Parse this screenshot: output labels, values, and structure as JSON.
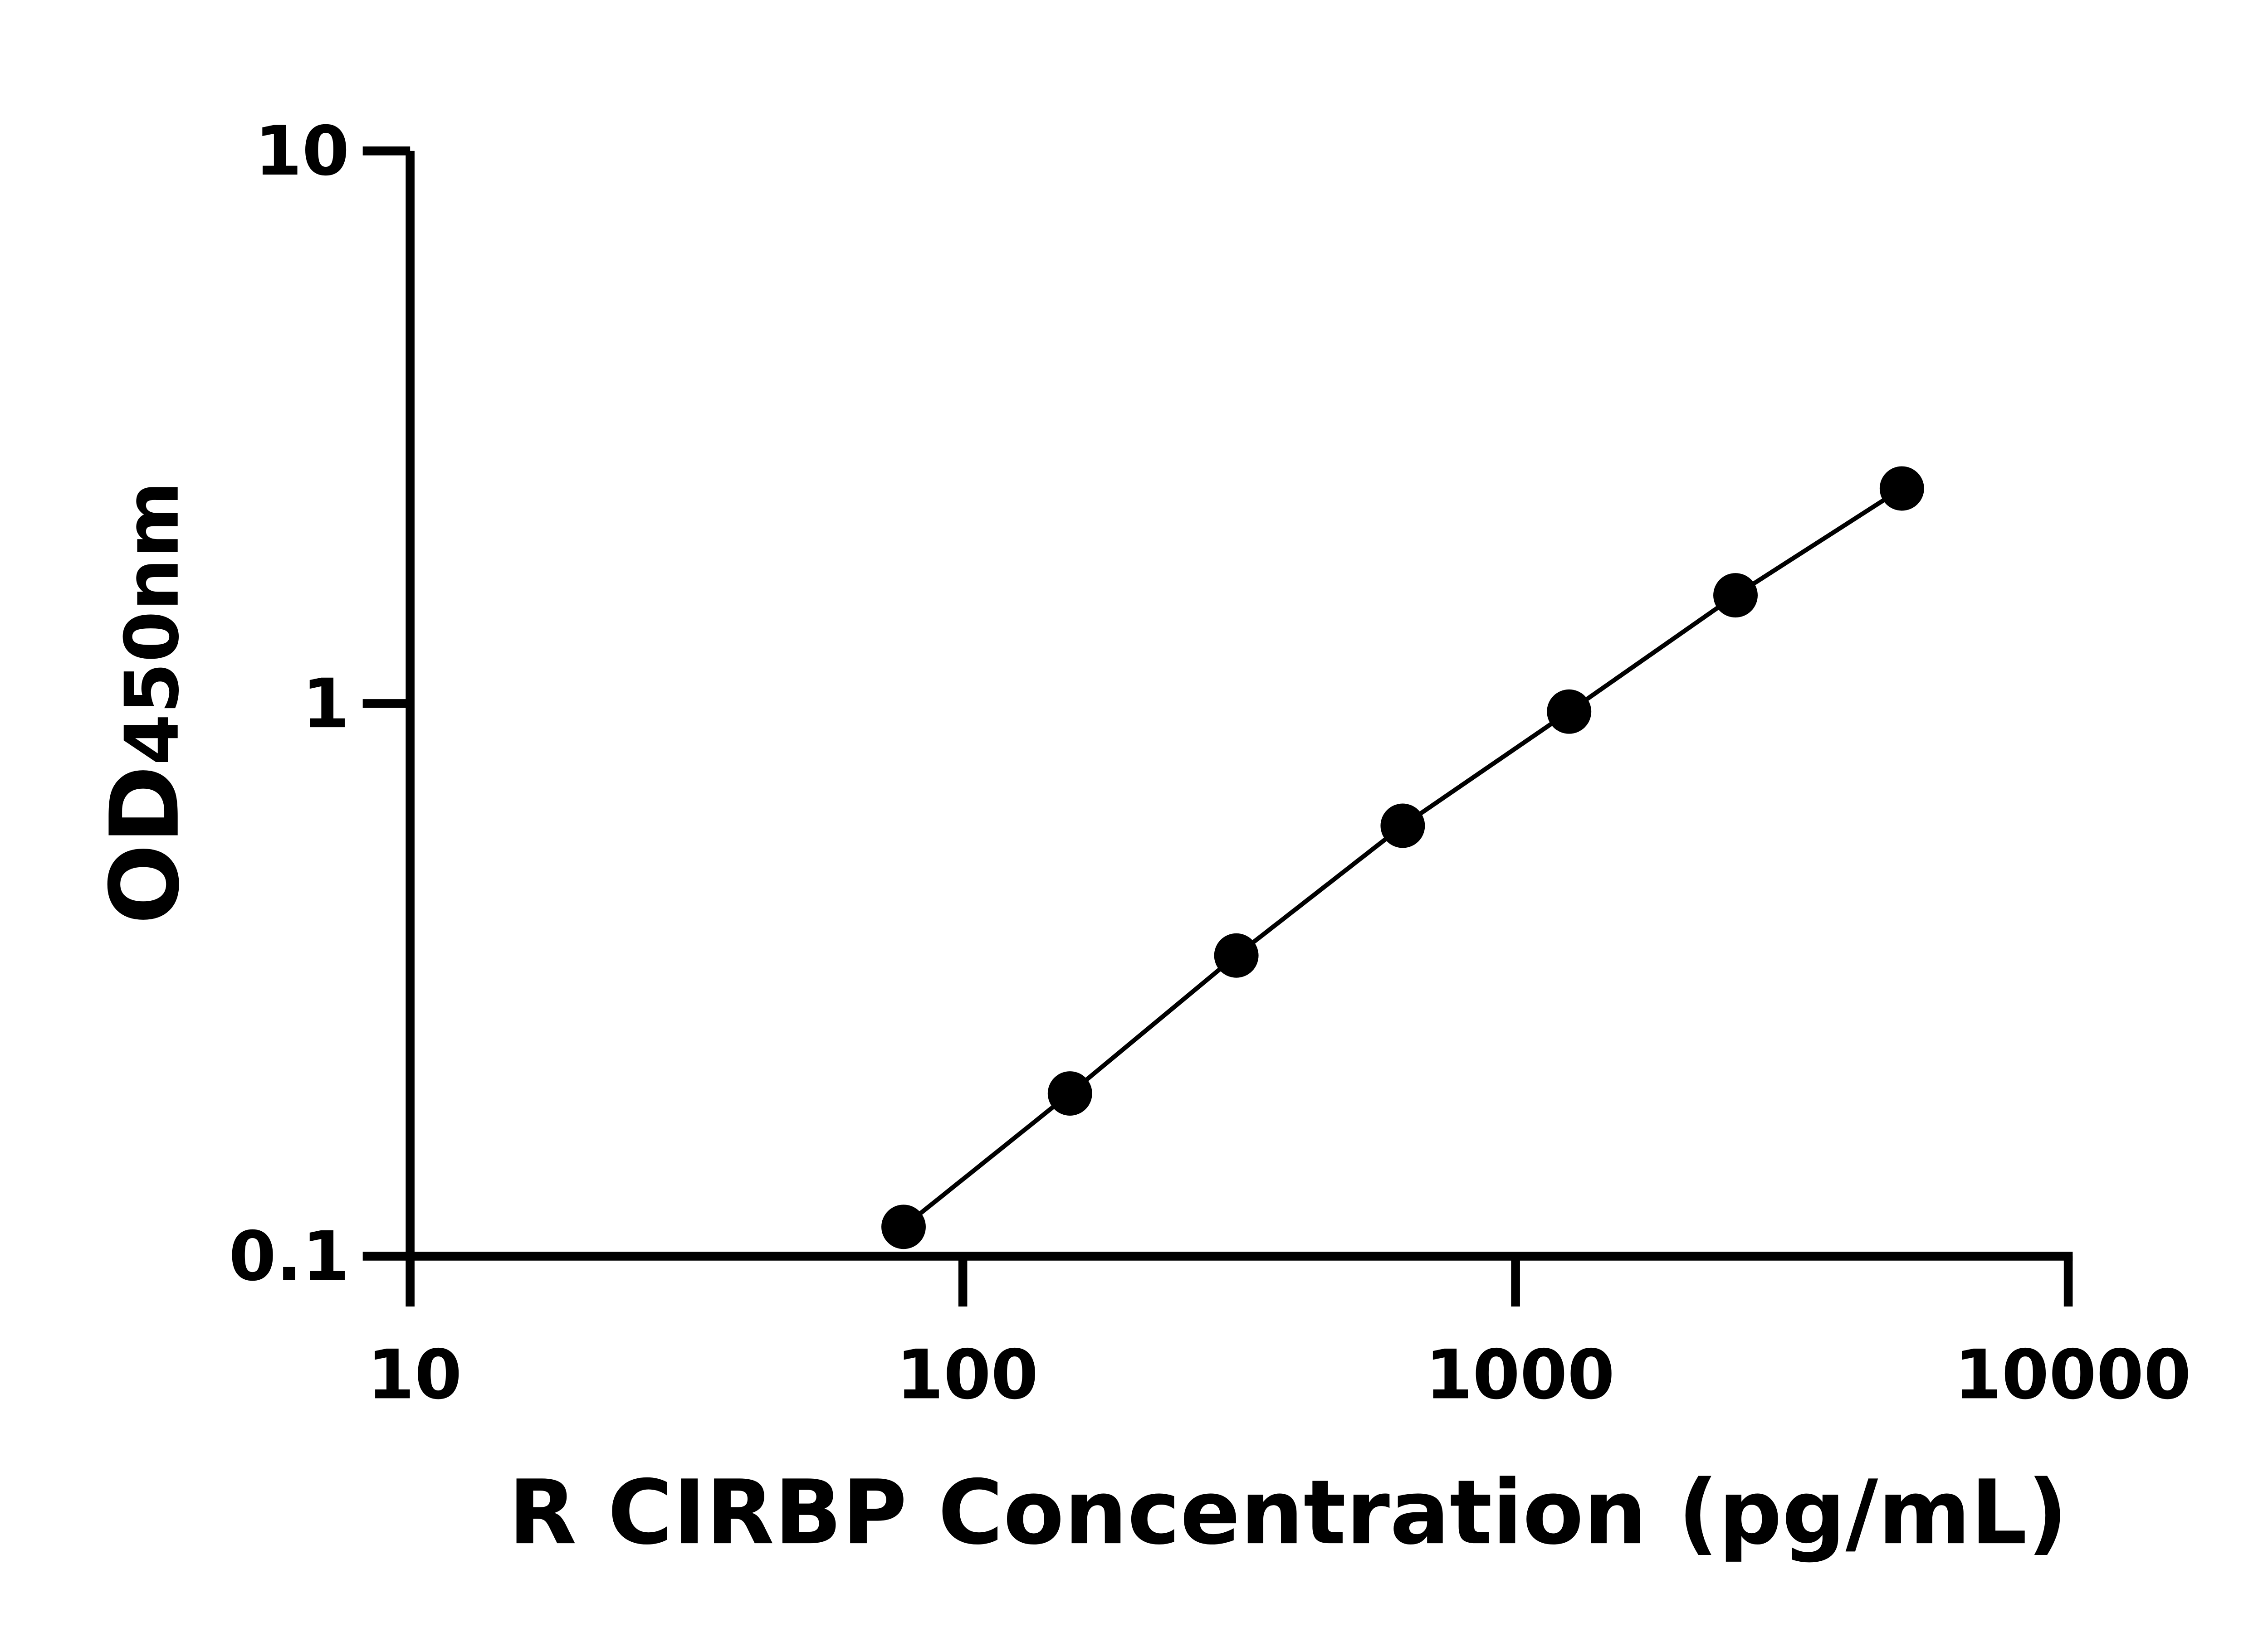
{
  "chart_data": {
    "type": "line",
    "title": "",
    "xlabel": "R CIRBP Concentration (pg/mL)",
    "ylabel_main": "OD",
    "ylabel_sub": "450nm",
    "x_scale": "log",
    "y_scale": "log",
    "xlim": [
      10,
      10000
    ],
    "ylim": [
      0.1,
      10
    ],
    "x_ticks": [
      "10",
      "100",
      "1000",
      "10000"
    ],
    "y_ticks": [
      "0.1",
      "1",
      "10"
    ],
    "grid": false,
    "markers": "filled-circle",
    "color": "#000000",
    "series": [
      {
        "x": [
          78.125,
          156.25,
          312.5,
          625,
          1250,
          2500,
          5000
        ],
        "y": [
          0.113,
          0.197,
          0.35,
          0.601,
          0.967,
          1.57,
          2.45
        ]
      }
    ]
  }
}
